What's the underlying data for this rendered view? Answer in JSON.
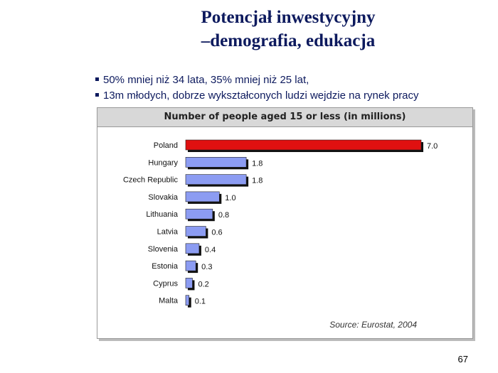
{
  "slide": {
    "title_line1": "Potencjał inwestycyjny",
    "title_line2": "–demografia, edukacja",
    "bullets": [
      "50% mniej niż 34 lata, 35% mniej niż 25 lat,",
      "13m młodych, dobrze wykształconych ludzi wejdzie na rynek pracy"
    ],
    "page_number": "67"
  },
  "chart_data": {
    "type": "bar",
    "orientation": "horizontal",
    "title": "Number of people aged 15 or less (in millions)",
    "source": "Source: Eurostat, 2004",
    "categories": [
      "Poland",
      "Hungary",
      "Czech Republic",
      "Slovakia",
      "Lithuania",
      "Latvia",
      "Slovenia",
      "Estonia",
      "Cyprus",
      "Malta"
    ],
    "values": [
      7.0,
      1.8,
      1.8,
      1.0,
      0.8,
      0.6,
      0.4,
      0.3,
      0.2,
      0.1
    ],
    "value_labels": [
      "7.0",
      "1.8",
      "1.8",
      "1.0",
      "0.8",
      "0.6",
      "0.4",
      "0.3",
      "0.2",
      "0.1"
    ],
    "xlim": [
      0,
      7.0
    ],
    "grid": false,
    "legend": "none",
    "colors": {
      "highlight": "#e01010",
      "bar": "#8c9cf2",
      "bar_shadow": "#111111"
    }
  }
}
